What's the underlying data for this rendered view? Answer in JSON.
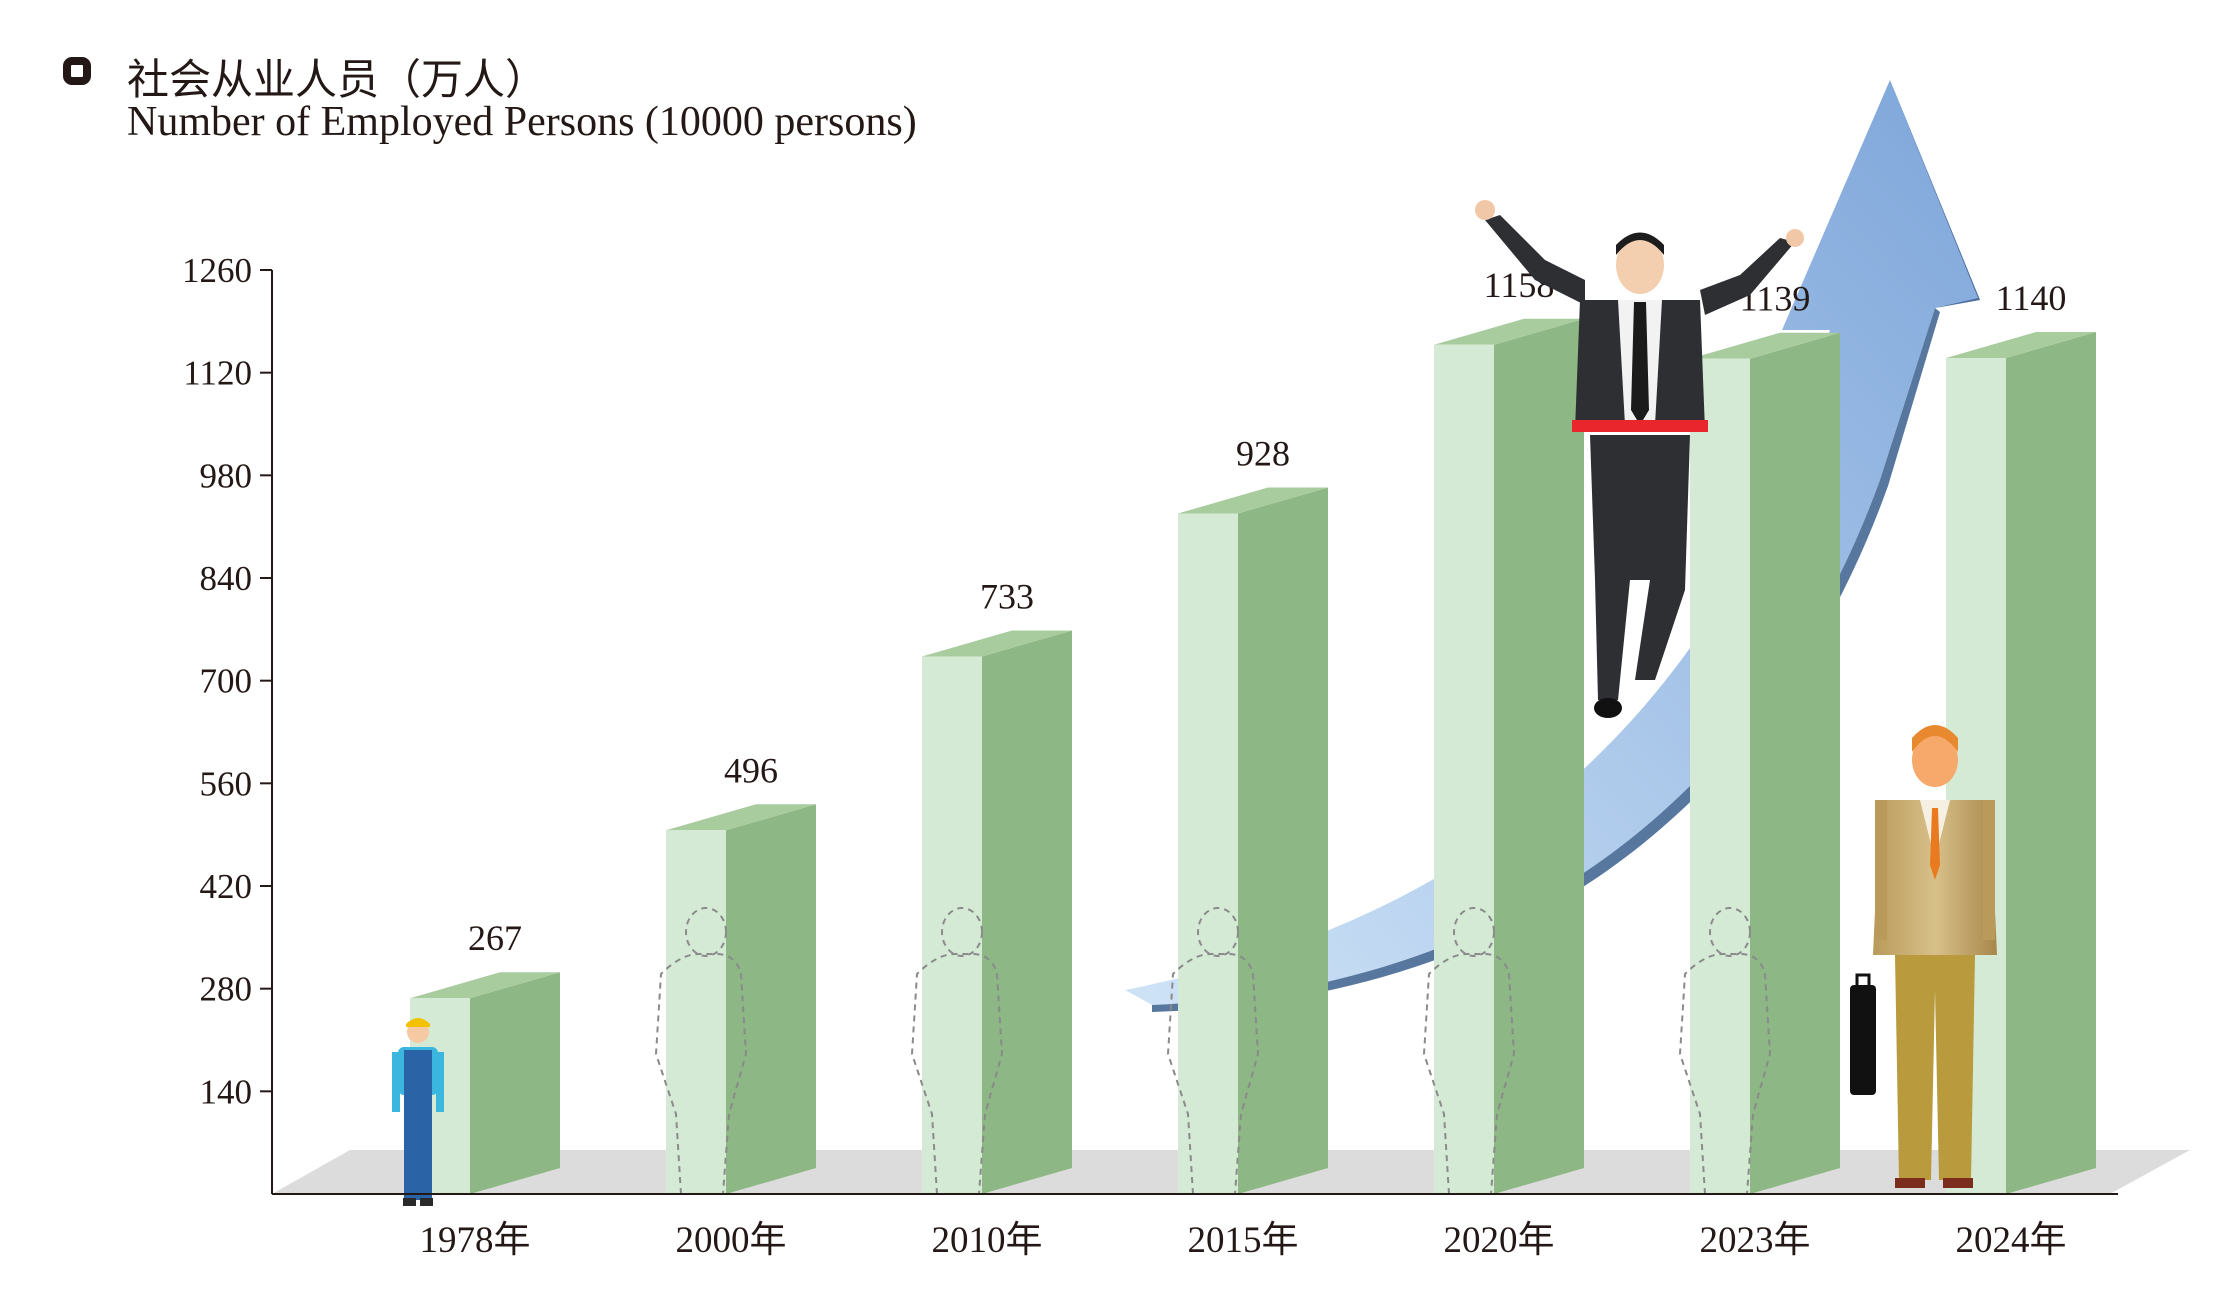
{
  "title": {
    "cn": "社会从业人员（万人）",
    "en": "Number of Employed Persons (10000 persons)"
  },
  "colors": {
    "bar_front": "#d4ead5",
    "bar_side": "#8db784",
    "bar_top": "#a9cc9f",
    "floor": "#dcdcdc",
    "arrow": "#8fb8e4",
    "text": "#231815"
  },
  "chart_data": {
    "type": "bar",
    "categories": [
      "1978年",
      "2000年",
      "2010年",
      "2015年",
      "2020年",
      "2023年",
      "2024年"
    ],
    "values": [
      267,
      496,
      733,
      928,
      1158,
      1139,
      1140
    ],
    "ylim": [
      0,
      1260
    ],
    "yticks": [
      140,
      280,
      420,
      560,
      700,
      840,
      980,
      1120,
      1260
    ],
    "grid": false,
    "legend": "none"
  }
}
